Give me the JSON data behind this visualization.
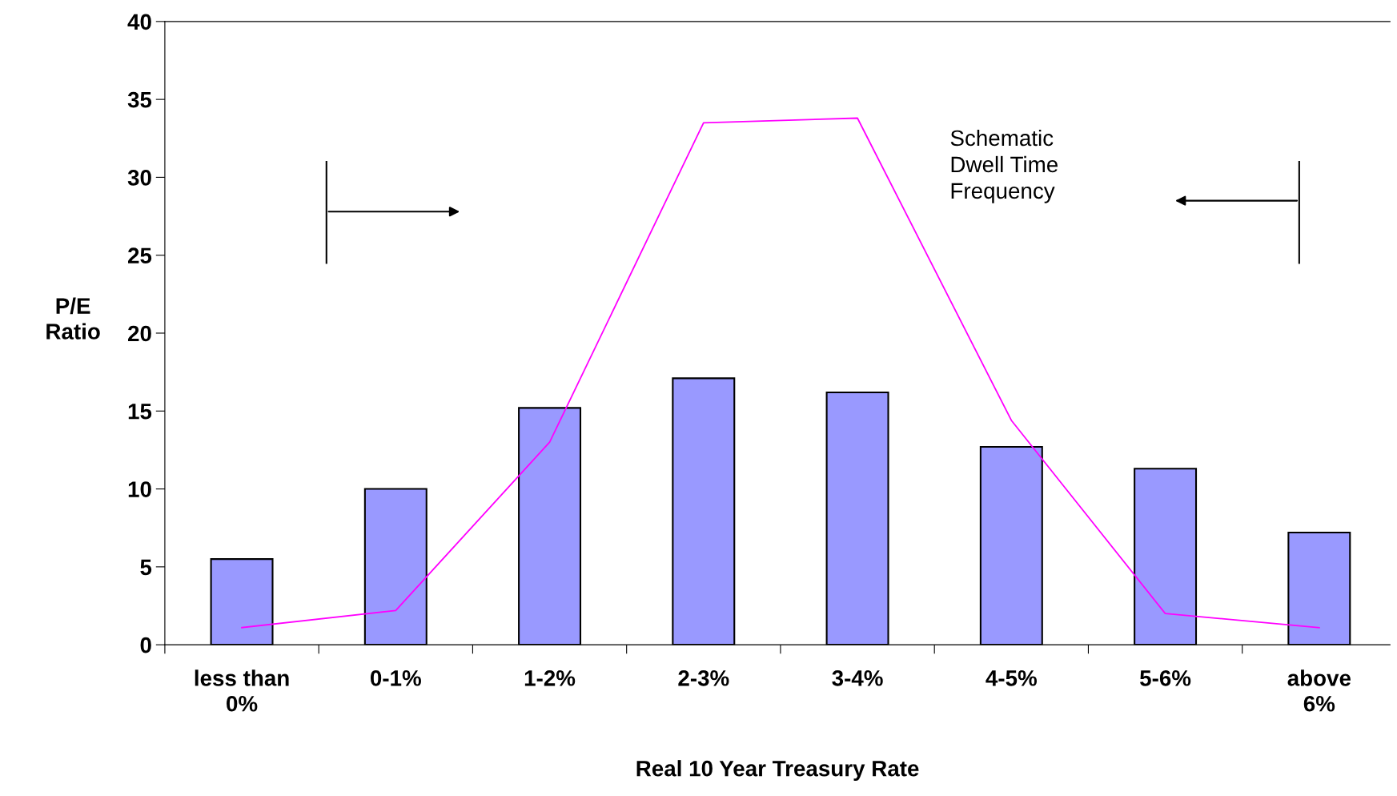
{
  "chart_data": {
    "type": "bar",
    "xlabel": "Real 10 Year Treasury Rate",
    "ylabel": "P/E\nRatio",
    "categories": [
      "less than\n0%",
      "0-1%",
      "1-2%",
      "2-3%",
      "3-4%",
      "4-5%",
      "5-6%",
      "above\n6%"
    ],
    "ylim": [
      0,
      40
    ],
    "yticks": [
      0,
      5,
      10,
      15,
      20,
      25,
      30,
      35,
      40
    ],
    "grid": false,
    "legend": false,
    "series": [
      {
        "color": "#9999ff",
        "values": [
          5.5,
          10.0,
          15.2,
          17.1,
          16.2,
          12.7,
          11.3,
          7.2
        ]
      },
      {
        "type": "line",
        "color": "#ff00ff",
        "values": [
          1.1,
          2.2,
          13.0,
          33.5,
          33.8,
          14.4,
          2.0,
          1.1
        ]
      }
    ],
    "annotations": [
      "Schematic\nDwell Time\nFrequency"
    ]
  }
}
